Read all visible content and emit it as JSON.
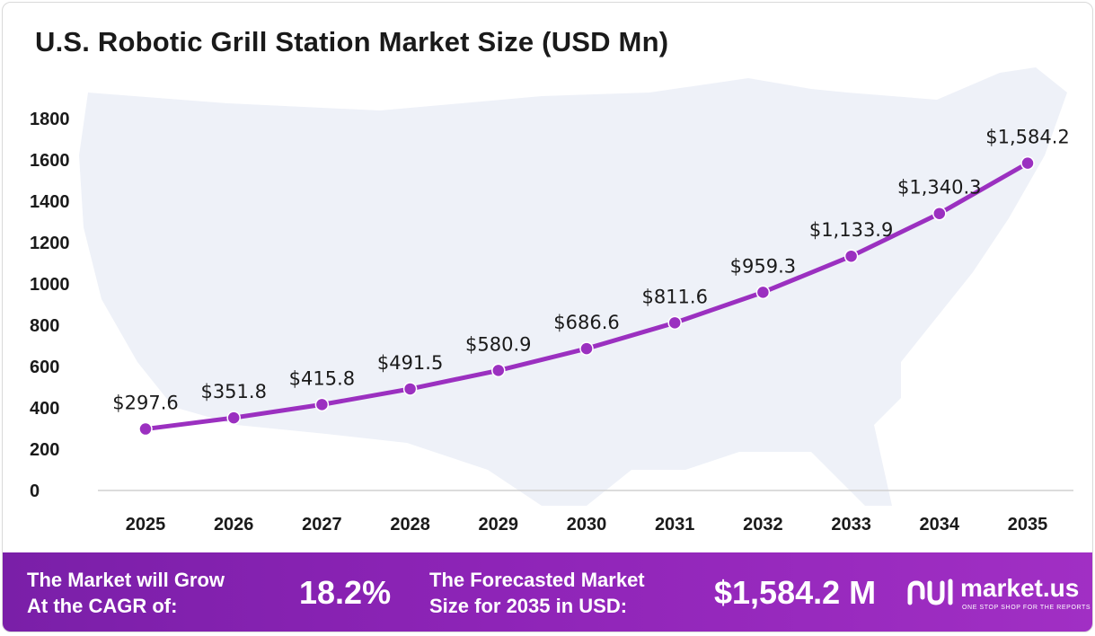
{
  "chart_data": {
    "type": "line",
    "title": "U.S. Robotic Grill Station Market Size (USD Mn)",
    "categories": [
      "2025",
      "2026",
      "2027",
      "2028",
      "2029",
      "2030",
      "2031",
      "2032",
      "2033",
      "2034",
      "2035"
    ],
    "values": [
      297.6,
      351.8,
      415.8,
      491.5,
      580.9,
      686.6,
      811.6,
      959.3,
      1133.9,
      1340.3,
      1584.2
    ],
    "data_labels": [
      "$297.6",
      "$351.8",
      "$415.8",
      "$491.5",
      "$580.9",
      "$686.6",
      "$811.6",
      "$959.3",
      "$1,133.9",
      "$1,340.3",
      "$1,584.2"
    ],
    "ylim": [
      0,
      1800
    ],
    "yticks": [
      0,
      200,
      400,
      600,
      800,
      1000,
      1200,
      1400,
      1600,
      1800
    ],
    "grid": false,
    "series_color": "#9b30c0"
  },
  "footer": {
    "cagr_label_line1": "The Market will Grow",
    "cagr_label_line2": "At the CAGR of:",
    "cagr_value": "18.2%",
    "size_label_line1": "The Forecasted Market",
    "size_label_line2": "Size for 2035 in USD:",
    "size_value": "$1,584.2 M",
    "background_color": "#8e24b7"
  },
  "brand": {
    "name": "market.us",
    "tagline": "ONE STOP SHOP FOR THE REPORTS",
    "icon": "market-us-logo-icon"
  }
}
